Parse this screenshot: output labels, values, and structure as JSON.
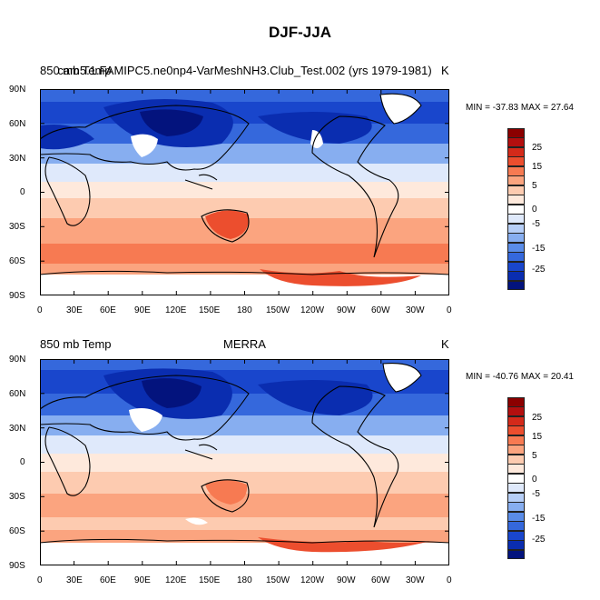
{
  "figure_title": "DJF-JJA",
  "panels": [
    {
      "left_label": "850 mb Temp",
      "center_label": "cam5.1.FAMIPC5.ne0np4-VarMeshNH3.Club_Test.002 (yrs 1979-1981)",
      "units_label": "K",
      "stats_text": "MIN = -37.83 MAX =  27.64"
    },
    {
      "left_label": "850 mb Temp",
      "center_label": "MERRA",
      "units_label": "K",
      "stats_text": "MIN = -40.76 MAX =  20.41"
    }
  ],
  "lon_ticks": [
    "0",
    "30E",
    "60E",
    "90E",
    "120E",
    "150E",
    "180",
    "150W",
    "120W",
    "90W",
    "60W",
    "30W",
    "0"
  ],
  "lat_ticks": [
    "90N",
    "60N",
    "30N",
    "0",
    "30S",
    "60S",
    "90S"
  ],
  "colorbar": {
    "labels": [
      "25",
      "15",
      "5",
      "0",
      "-5",
      "-15",
      "-25"
    ],
    "colors": [
      "#8b0000",
      "#b30f0f",
      "#d42a1a",
      "#ec4e2e",
      "#f77a52",
      "#fba47f",
      "#fdcbb0",
      "#fee9dc",
      "#ffffff",
      "#dfe9fb",
      "#b6cef7",
      "#87aef0",
      "#5a8ce8",
      "#3568dc",
      "#1946cc",
      "#0a2db0",
      "#03137d"
    ]
  }
}
